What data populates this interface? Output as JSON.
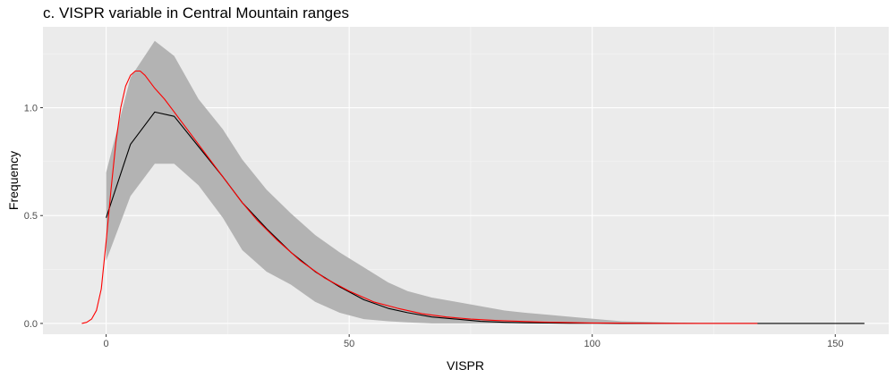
{
  "chart_data": {
    "type": "line",
    "title": "c. VISPR variable in Central Mountain ranges",
    "xlabel": "VISPR",
    "ylabel": "Frequency",
    "xlim": [
      -13,
      161
    ],
    "ylim": [
      -0.05,
      1.375
    ],
    "x_ticks": [
      0,
      50,
      100,
      150
    ],
    "y_ticks": [
      0.0,
      0.5,
      1.0
    ],
    "x_tick_labels": [
      "0",
      "50",
      "100",
      "150"
    ],
    "y_tick_labels": [
      "0.0",
      "0.5",
      "1.0"
    ],
    "grid": true,
    "legend": "none",
    "band": {
      "x": [
        0,
        5,
        10,
        14,
        19,
        24,
        28,
        33,
        38,
        43,
        48,
        53,
        58,
        62,
        67,
        72,
        77,
        82,
        86,
        91,
        96,
        101,
        106,
        110,
        115,
        120,
        125
      ],
      "upper": [
        0.7,
        1.14,
        1.31,
        1.24,
        1.04,
        0.9,
        0.76,
        0.62,
        0.51,
        0.41,
        0.33,
        0.26,
        0.19,
        0.15,
        0.12,
        0.1,
        0.08,
        0.06,
        0.05,
        0.04,
        0.03,
        0.02,
        0.01,
        0.008,
        0.005,
        0.003,
        0.0
      ],
      "lower": [
        0.29,
        0.59,
        0.74,
        0.74,
        0.64,
        0.49,
        0.34,
        0.24,
        0.18,
        0.1,
        0.05,
        0.02,
        0.01,
        0.005,
        0.0,
        0.0,
        0.0,
        0.0,
        0.0,
        0.0,
        0.0,
        0.0,
        0.0,
        0.0,
        0.0,
        0.0,
        0.0
      ]
    },
    "series": [
      {
        "color": "#000000",
        "x": [
          0,
          5,
          10,
          14,
          19,
          24,
          28,
          33,
          38,
          43,
          48,
          53,
          58,
          62,
          67,
          72,
          77,
          82,
          86,
          91,
          96,
          101,
          106,
          110,
          115,
          120,
          125,
          130,
          135,
          140,
          145,
          150,
          156
        ],
        "y": [
          0.49,
          0.83,
          0.98,
          0.96,
          0.82,
          0.68,
          0.56,
          0.44,
          0.33,
          0.24,
          0.17,
          0.11,
          0.07,
          0.05,
          0.03,
          0.02,
          0.01,
          0.005,
          0.003,
          0.002,
          0.001,
          0.001,
          0.0,
          0.0,
          0.0,
          0.0,
          0.0,
          0.0,
          0.0,
          0.0,
          0.0,
          0.0,
          0.0
        ]
      },
      {
        "color": "#ff0000",
        "x": [
          -5,
          -4,
          -3,
          -2,
          -1,
          0,
          1,
          2,
          3,
          4,
          5,
          6,
          7,
          8,
          9,
          10,
          12,
          14,
          16,
          18,
          20,
          22,
          25,
          28,
          31,
          35,
          40,
          45,
          50,
          55,
          60,
          65,
          70,
          75,
          80,
          85,
          90,
          95,
          100,
          110,
          120,
          134
        ],
        "y": [
          0.0,
          0.005,
          0.02,
          0.06,
          0.16,
          0.38,
          0.62,
          0.84,
          1.0,
          1.1,
          1.15,
          1.17,
          1.17,
          1.15,
          1.12,
          1.09,
          1.04,
          0.98,
          0.92,
          0.86,
          0.8,
          0.74,
          0.65,
          0.56,
          0.48,
          0.39,
          0.29,
          0.21,
          0.15,
          0.1,
          0.07,
          0.045,
          0.03,
          0.02,
          0.014,
          0.01,
          0.006,
          0.004,
          0.002,
          0.001,
          0.0,
          0.0
        ]
      }
    ]
  }
}
